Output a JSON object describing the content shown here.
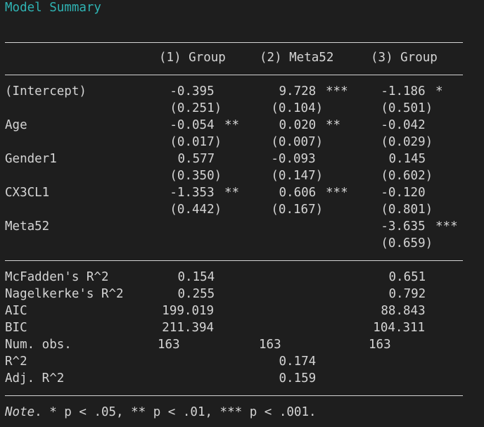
{
  "title": "Model Summary",
  "columns": [
    "(1) Group",
    "(2) Meta52",
    "(3) Group"
  ],
  "coef_rows": [
    {
      "label": "(Intercept)",
      "c1": "-0.395",
      "c1s": "",
      "c2": "9.728",
      "c2s": "***",
      "c3": "-1.186",
      "c3s": "*"
    },
    {
      "label": "",
      "c1": "(0.251)",
      "c1s": "",
      "c2": "(0.104)",
      "c2s": "",
      "c3": "(0.501)",
      "c3s": ""
    },
    {
      "label": "Age",
      "c1": "-0.054",
      "c1s": "**",
      "c2": "0.020",
      "c2s": "**",
      "c3": "-0.042",
      "c3s": ""
    },
    {
      "label": "",
      "c1": "(0.017)",
      "c1s": "",
      "c2": "(0.007)",
      "c2s": "",
      "c3": "(0.029)",
      "c3s": ""
    },
    {
      "label": "Gender1",
      "c1": "0.577",
      "c1s": "",
      "c2": "-0.093",
      "c2s": "",
      "c3": "0.145",
      "c3s": ""
    },
    {
      "label": "",
      "c1": "(0.350)",
      "c1s": "",
      "c2": "(0.147)",
      "c2s": "",
      "c3": "(0.602)",
      "c3s": ""
    },
    {
      "label": "CX3CL1",
      "c1": "-1.353",
      "c1s": "**",
      "c2": "0.606",
      "c2s": "***",
      "c3": "-0.120",
      "c3s": ""
    },
    {
      "label": "",
      "c1": "(0.442)",
      "c1s": "",
      "c2": "(0.167)",
      "c2s": "",
      "c3": "(0.801)",
      "c3s": ""
    },
    {
      "label": "Meta52",
      "c1": "",
      "c1s": "",
      "c2": "",
      "c2s": "",
      "c3": "-3.635",
      "c3s": "***"
    },
    {
      "label": "",
      "c1": "",
      "c1s": "",
      "c2": "",
      "c2s": "",
      "c3": "(0.659)",
      "c3s": ""
    }
  ],
  "stat_rows": [
    {
      "label": "McFadden's R^2",
      "c1": "0.154",
      "c2": "",
      "c3": "0.651"
    },
    {
      "label": "Nagelkerke's R^2",
      "c1": "0.255",
      "c2": "",
      "c3": "0.792"
    },
    {
      "label": "AIC",
      "c1": "199.019",
      "c2": "",
      "c3": "88.843"
    },
    {
      "label": "BIC",
      "c1": "211.394",
      "c2": "",
      "c3": "104.311"
    },
    {
      "label": "Num. obs.",
      "c1": "163",
      "c2": "163",
      "c3": "163"
    },
    {
      "label": "R^2",
      "c1": "",
      "c2": "0.174",
      "c3": ""
    },
    {
      "label": "Adj. R^2",
      "c1": "",
      "c2": "0.159",
      "c3": ""
    }
  ],
  "note": {
    "prefix": "Note",
    "text": ". * p < .05, ** p < .01, *** p < .001."
  }
}
